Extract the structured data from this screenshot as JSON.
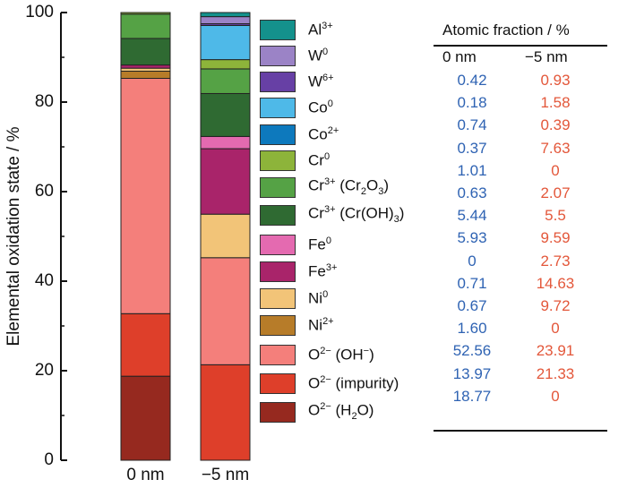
{
  "chart_data": {
    "type": "bar",
    "stacked": true,
    "categories": [
      "0 nm",
      "−5 nm"
    ],
    "ylabel": "Elemental oxidation state / %",
    "ylim": [
      0,
      100
    ],
    "yticks": [
      "0",
      "20",
      "40",
      "60",
      "80",
      "100"
    ],
    "series": [
      {
        "key": "o_h2o",
        "name": "O2− (H2O)",
        "color": "#96291f",
        "values": [
          18.77,
          0
        ]
      },
      {
        "key": "o_imp",
        "name": "O2− (impurity)",
        "color": "#de3f2a",
        "values": [
          13.97,
          21.33
        ]
      },
      {
        "key": "o_oh",
        "name": "O2− (OH−)",
        "color": "#f47f7b",
        "values": [
          52.56,
          23.91
        ]
      },
      {
        "key": "ni2",
        "name": "Ni2+",
        "color": "#b77c29",
        "values": [
          1.6,
          0
        ]
      },
      {
        "key": "ni0",
        "name": "Ni0",
        "color": "#f2c478",
        "values": [
          0.67,
          9.72
        ]
      },
      {
        "key": "fe3",
        "name": "Fe3+",
        "color": "#a9246a",
        "values": [
          0.71,
          14.63
        ]
      },
      {
        "key": "fe0",
        "name": "Fe0",
        "color": "#e46ab0",
        "values": [
          0,
          2.73
        ]
      },
      {
        "key": "cr_oh",
        "name": "Cr3+ (Cr(OH)3)",
        "color": "#2f6a32",
        "values": [
          5.93,
          9.59
        ]
      },
      {
        "key": "cr_ox",
        "name": "Cr3+ (Cr2O3)",
        "color": "#55a245",
        "values": [
          5.44,
          5.5
        ]
      },
      {
        "key": "cr0",
        "name": "Cr0",
        "color": "#8db43a",
        "values": [
          0.63,
          2.07
        ]
      },
      {
        "key": "co2",
        "name": "Co2+",
        "color": "#0d79bd",
        "values": [
          1.01,
          0
        ]
      },
      {
        "key": "co0",
        "name": "Co0",
        "color": "#4eb9e8",
        "values": [
          0.37,
          7.63
        ]
      },
      {
        "key": "w6",
        "name": "W6+",
        "color": "#6740a5",
        "values": [
          0.74,
          0.39
        ]
      },
      {
        "key": "w0",
        "name": "W0",
        "color": "#9b83c6",
        "values": [
          0.18,
          1.58
        ]
      },
      {
        "key": "al3",
        "name": "Al3+",
        "color": "#14918c",
        "values": [
          0.42,
          0.93
        ]
      }
    ]
  },
  "legend": {
    "al3": {
      "base": "Al",
      "sup": "3+",
      "rest": ""
    },
    "w0": {
      "base": "W",
      "sup": "0",
      "rest": ""
    },
    "w6": {
      "base": "W",
      "sup": "6+",
      "rest": ""
    },
    "co0": {
      "base": "Co",
      "sup": "0",
      "rest": ""
    },
    "co2": {
      "base": "Co",
      "sup": "2+",
      "rest": ""
    },
    "cr0": {
      "base": "Cr",
      "sup": "0",
      "rest": ""
    },
    "cr_ox": {
      "base": "Cr",
      "sup": "3+",
      "rest_a": " (Cr",
      "sub_a": "2",
      "rest_b": "O",
      "sub_b": "3",
      "rest_c": ")"
    },
    "cr_oh": {
      "base": "Cr",
      "sup": "3+",
      "rest_a": " (Cr(OH)",
      "sub_a": "3",
      "rest_b": ")"
    },
    "fe0": {
      "base": "Fe",
      "sup": "0",
      "rest": ""
    },
    "fe3": {
      "base": "Fe",
      "sup": "3+",
      "rest": ""
    },
    "ni0": {
      "base": "Ni",
      "sup": "0",
      "rest": ""
    },
    "ni2": {
      "base": "Ni",
      "sup": "2+",
      "rest": ""
    },
    "o_oh": {
      "base": "O",
      "sup": "2−",
      "rest_a": " (OH",
      "sup_b": "−",
      "rest_b": ")"
    },
    "o_imp": {
      "base": "O",
      "sup": "2−",
      "rest": " (impurity)"
    },
    "o_h2o": {
      "base": "O",
      "sup": "2−",
      "rest_a": " (H",
      "sub_a": "2",
      "rest_b": "O)"
    }
  },
  "table": {
    "title": "Atomic fraction / %",
    "col_0nm": "0 nm",
    "col_5nm": "−5 nm",
    "rows": [
      [
        "0.42",
        "0.93"
      ],
      [
        "0.18",
        "1.58"
      ],
      [
        "0.74",
        "0.39"
      ],
      [
        "0.37",
        "7.63"
      ],
      [
        "1.01",
        "0"
      ],
      [
        "0.63",
        "2.07"
      ],
      [
        "5.44",
        "5.5"
      ],
      [
        "5.93",
        "9.59"
      ],
      [
        "0",
        "2.73"
      ],
      [
        "0.71",
        "14.63"
      ],
      [
        "0.67",
        "9.72"
      ],
      [
        "1.60",
        "0"
      ],
      [
        "52.56",
        "23.91"
      ],
      [
        "13.97",
        "21.33"
      ],
      [
        "18.77",
        "0"
      ]
    ]
  }
}
